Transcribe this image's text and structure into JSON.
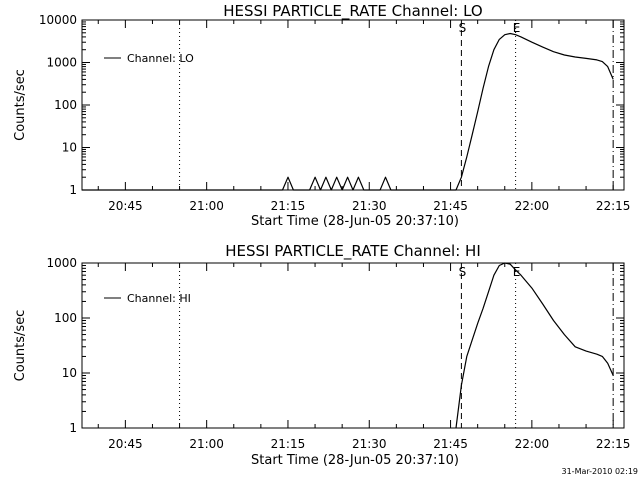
{
  "timestamp": "31-Mar-2010 02:19",
  "chart_data": [
    {
      "type": "line",
      "title": "HESSI PARTICLE_RATE Channel: LO",
      "xlabel": "Start Time (28-Jun-05 20:37:10)",
      "ylabel": "Counts/sec",
      "yscale": "log",
      "xlim": [
        "20:37",
        "22:17"
      ],
      "ylim": [
        1,
        10000
      ],
      "x_ticks": [
        "20:45",
        "21:00",
        "21:15",
        "21:30",
        "21:45",
        "22:00",
        "22:15"
      ],
      "y_ticks": [
        "1",
        "10",
        "100",
        "1000",
        "10000"
      ],
      "series": [
        {
          "name": "Channel: LO",
          "points": [
            [
              "20:37",
              1
            ],
            [
              "21:14",
              1
            ],
            [
              "21:15",
              2
            ],
            [
              "21:16",
              1
            ],
            [
              "21:19",
              1
            ],
            [
              "21:20",
              2
            ],
            [
              "21:21",
              1
            ],
            [
              "21:22",
              2
            ],
            [
              "21:23",
              1
            ],
            [
              "21:24",
              2
            ],
            [
              "21:25",
              1
            ],
            [
              "21:26",
              2
            ],
            [
              "21:27",
              1
            ],
            [
              "21:28",
              2
            ],
            [
              "21:29",
              1
            ],
            [
              "21:32",
              1
            ],
            [
              "21:33",
              2
            ],
            [
              "21:34",
              1
            ],
            [
              "21:46",
              1
            ],
            [
              "21:47",
              2
            ],
            [
              "21:48",
              6
            ],
            [
              "21:49",
              20
            ],
            [
              "21:50",
              70
            ],
            [
              "21:51",
              250
            ],
            [
              "21:52",
              800
            ],
            [
              "21:53",
              2000
            ],
            [
              "21:54",
              3500
            ],
            [
              "21:55",
              4500
            ],
            [
              "21:56",
              4800
            ],
            [
              "21:57",
              4500
            ],
            [
              "21:58",
              4000
            ],
            [
              "22:00",
              3000
            ],
            [
              "22:02",
              2300
            ],
            [
              "22:04",
              1800
            ],
            [
              "22:06",
              1500
            ],
            [
              "22:08",
              1350
            ],
            [
              "22:10",
              1250
            ],
            [
              "22:12",
              1150
            ],
            [
              "22:13",
              1050
            ],
            [
              "22:14",
              800
            ],
            [
              "22:15",
              400
            ]
          ]
        }
      ],
      "markers": [
        {
          "label": "",
          "time": "20:55",
          "style": "dotted"
        },
        {
          "label": "S",
          "time": "21:47",
          "style": "dashed"
        },
        {
          "label": "E",
          "time": "21:57",
          "style": "dotted"
        },
        {
          "label": "",
          "time": "22:15",
          "style": "dashdot"
        }
      ],
      "legend": "top-left"
    },
    {
      "type": "line",
      "title": "HESSI PARTICLE_RATE Channel: HI",
      "xlabel": "Start Time (28-Jun-05 20:37:10)",
      "ylabel": "Counts/sec",
      "yscale": "log",
      "xlim": [
        "20:37",
        "22:17"
      ],
      "ylim": [
        1,
        1000
      ],
      "x_ticks": [
        "20:45",
        "21:00",
        "21:15",
        "21:30",
        "21:45",
        "22:00",
        "22:15"
      ],
      "y_ticks": [
        "1",
        "10",
        "100",
        "1000"
      ],
      "series": [
        {
          "name": "Channel: HI",
          "points": [
            [
              "21:46",
              1
            ],
            [
              "21:47",
              6
            ],
            [
              "21:48",
              20
            ],
            [
              "21:49",
              40
            ],
            [
              "21:50",
              80
            ],
            [
              "21:51",
              150
            ],
            [
              "21:52",
              300
            ],
            [
              "21:53",
              600
            ],
            [
              "21:54",
              900
            ],
            [
              "21:55",
              1000
            ],
            [
              "21:56",
              950
            ],
            [
              "21:57",
              750
            ],
            [
              "21:58",
              600
            ],
            [
              "22:00",
              350
            ],
            [
              "22:02",
              180
            ],
            [
              "22:04",
              90
            ],
            [
              "22:06",
              50
            ],
            [
              "22:08",
              30
            ],
            [
              "22:10",
              25
            ],
            [
              "22:12",
              22
            ],
            [
              "22:13",
              20
            ],
            [
              "22:14",
              15
            ],
            [
              "22:15",
              9
            ]
          ]
        }
      ],
      "markers": [
        {
          "label": "",
          "time": "20:55",
          "style": "dotted"
        },
        {
          "label": "S",
          "time": "21:47",
          "style": "dashed"
        },
        {
          "label": "E",
          "time": "21:57",
          "style": "dotted"
        },
        {
          "label": "",
          "time": "22:15",
          "style": "dashdot"
        }
      ],
      "legend": "top-left"
    }
  ]
}
